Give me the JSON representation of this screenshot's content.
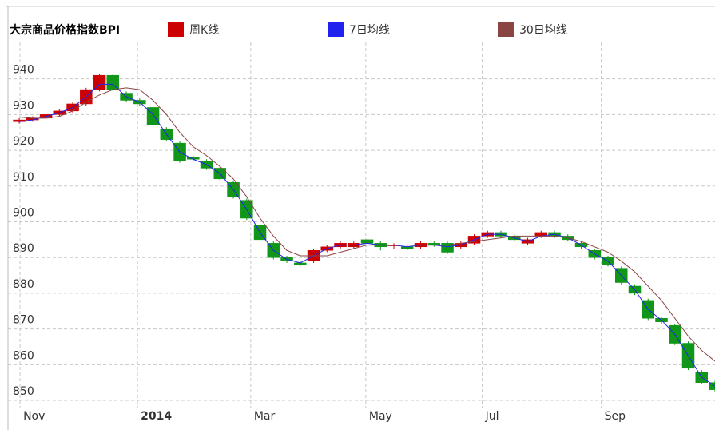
{
  "chart_data": {
    "type": "candlestick",
    "title": "大宗商品价格指数BPI",
    "x": [
      0,
      1,
      2,
      3,
      4,
      5,
      6,
      7,
      8,
      9,
      10,
      11,
      12,
      13,
      14,
      15,
      16,
      17,
      18,
      19,
      20,
      21,
      22,
      23,
      24,
      25,
      26,
      27,
      28,
      29,
      30,
      31,
      32,
      33,
      34,
      35,
      36,
      37,
      38,
      39,
      40,
      41,
      42,
      43,
      44,
      45,
      46,
      47,
      48,
      49,
      50,
      51,
      52
    ],
    "candles": {
      "name": "周K线",
      "up_color": "#cc0000",
      "down_color": "#109618",
      "open": [
        928,
        928.5,
        929,
        930,
        931,
        933,
        937,
        941,
        936,
        934,
        932,
        926,
        922,
        918,
        917,
        915,
        911,
        906,
        899,
        894,
        890,
        888.5,
        889,
        892,
        893,
        893,
        895,
        894,
        893.5,
        893,
        893,
        894,
        894,
        893,
        894,
        896,
        897,
        896,
        894,
        896,
        897,
        896,
        894,
        892,
        890,
        887,
        882,
        878,
        873,
        871,
        866,
        858,
        855
      ],
      "close": [
        928.5,
        929,
        930,
        931,
        933,
        937,
        941,
        937,
        934,
        933,
        927,
        923,
        917,
        917.5,
        915,
        912,
        907,
        901,
        895,
        890,
        889,
        888,
        892,
        893,
        894,
        894,
        894,
        893,
        893.5,
        892.5,
        894,
        893.5,
        891.5,
        894,
        896,
        897,
        896,
        895,
        895,
        897,
        896,
        895,
        893,
        890,
        888,
        883,
        880,
        873,
        872,
        866,
        859,
        855,
        853
      ],
      "high": [
        929,
        929.5,
        930.5,
        931.5,
        933.5,
        937.5,
        941.5,
        941.5,
        936.5,
        934.5,
        932.5,
        926.5,
        922.5,
        918.5,
        917.5,
        915.5,
        911.5,
        906.5,
        899.5,
        894.5,
        890.5,
        889,
        892.5,
        893.5,
        894.5,
        894.5,
        895.5,
        894.5,
        894,
        893.5,
        894.5,
        894.5,
        894.5,
        894.5,
        896.5,
        897.5,
        897.5,
        896.5,
        895.5,
        897.5,
        897.5,
        896.5,
        894.5,
        892.5,
        890.5,
        887.5,
        882.5,
        878.5,
        873.5,
        871.5,
        866.5,
        858.5,
        855.5
      ],
      "low": [
        927.5,
        928,
        928.5,
        929.5,
        930.5,
        932.5,
        936.5,
        936.5,
        933.5,
        932.5,
        926.5,
        922.5,
        916.5,
        917,
        914.5,
        911.5,
        906.5,
        900.5,
        894.5,
        889.5,
        888.5,
        887.5,
        888.5,
        891.5,
        892.5,
        892.5,
        893.5,
        892,
        892.5,
        892,
        892.5,
        893,
        891,
        892.5,
        893.5,
        895.5,
        895.5,
        894.5,
        893.5,
        895.5,
        895.5,
        894.5,
        892.5,
        889.5,
        887.5,
        882.5,
        879.5,
        872.5,
        871.5,
        865.5,
        858.5,
        854.5,
        852.5
      ]
    },
    "series": [
      {
        "name": "7日均线",
        "color": "#2222ee",
        "values": [
          928,
          928.5,
          929.5,
          930.5,
          932,
          935,
          938.5,
          938.5,
          935,
          933.5,
          930,
          924.5,
          919.5,
          917.5,
          916,
          913.5,
          909,
          903.5,
          897,
          892,
          889.5,
          888.5,
          890.5,
          892.5,
          893.5,
          893.5,
          894,
          893.5,
          893.5,
          893,
          893.5,
          893.5,
          893,
          893.5,
          895,
          896.5,
          896.5,
          895.5,
          894.5,
          896,
          896.5,
          895.5,
          893.5,
          891,
          889,
          885,
          881,
          875.5,
          872.5,
          868.5,
          862.5,
          856.5,
          854
        ]
      },
      {
        "name": "30日均线",
        "color": "#8b4444",
        "values": [
          929.3,
          929,
          929,
          929.5,
          931,
          933.5,
          935.5,
          937,
          937.5,
          937,
          934,
          930,
          925,
          921,
          918.5,
          915.5,
          912,
          907,
          901,
          896,
          892,
          890.5,
          890.5,
          890.5,
          891.5,
          892.5,
          893.5,
          893.5,
          893.5,
          893.5,
          893.5,
          893.5,
          893.5,
          894,
          894.5,
          895,
          895.5,
          896,
          896,
          896,
          896,
          895.5,
          894.5,
          893,
          891.5,
          889,
          886,
          882,
          878,
          873,
          868,
          864,
          861
        ]
      }
    ],
    "xlim": [
      -0.84,
      52
    ],
    "xticks": [
      {
        "value": 0.06,
        "label": "Nov"
      },
      {
        "value": 8.84,
        "label": "2014"
      },
      {
        "value": 17.3,
        "label": "Mar"
      },
      {
        "value": 25.9,
        "label": "May"
      },
      {
        "value": 34.6,
        "label": "Jul"
      },
      {
        "value": 43.5,
        "label": "Sep"
      }
    ],
    "ylim": [
      848,
      952
    ],
    "yticks": [
      850,
      860,
      870,
      880,
      890,
      900,
      910,
      920,
      930,
      940
    ],
    "grid": true
  }
}
